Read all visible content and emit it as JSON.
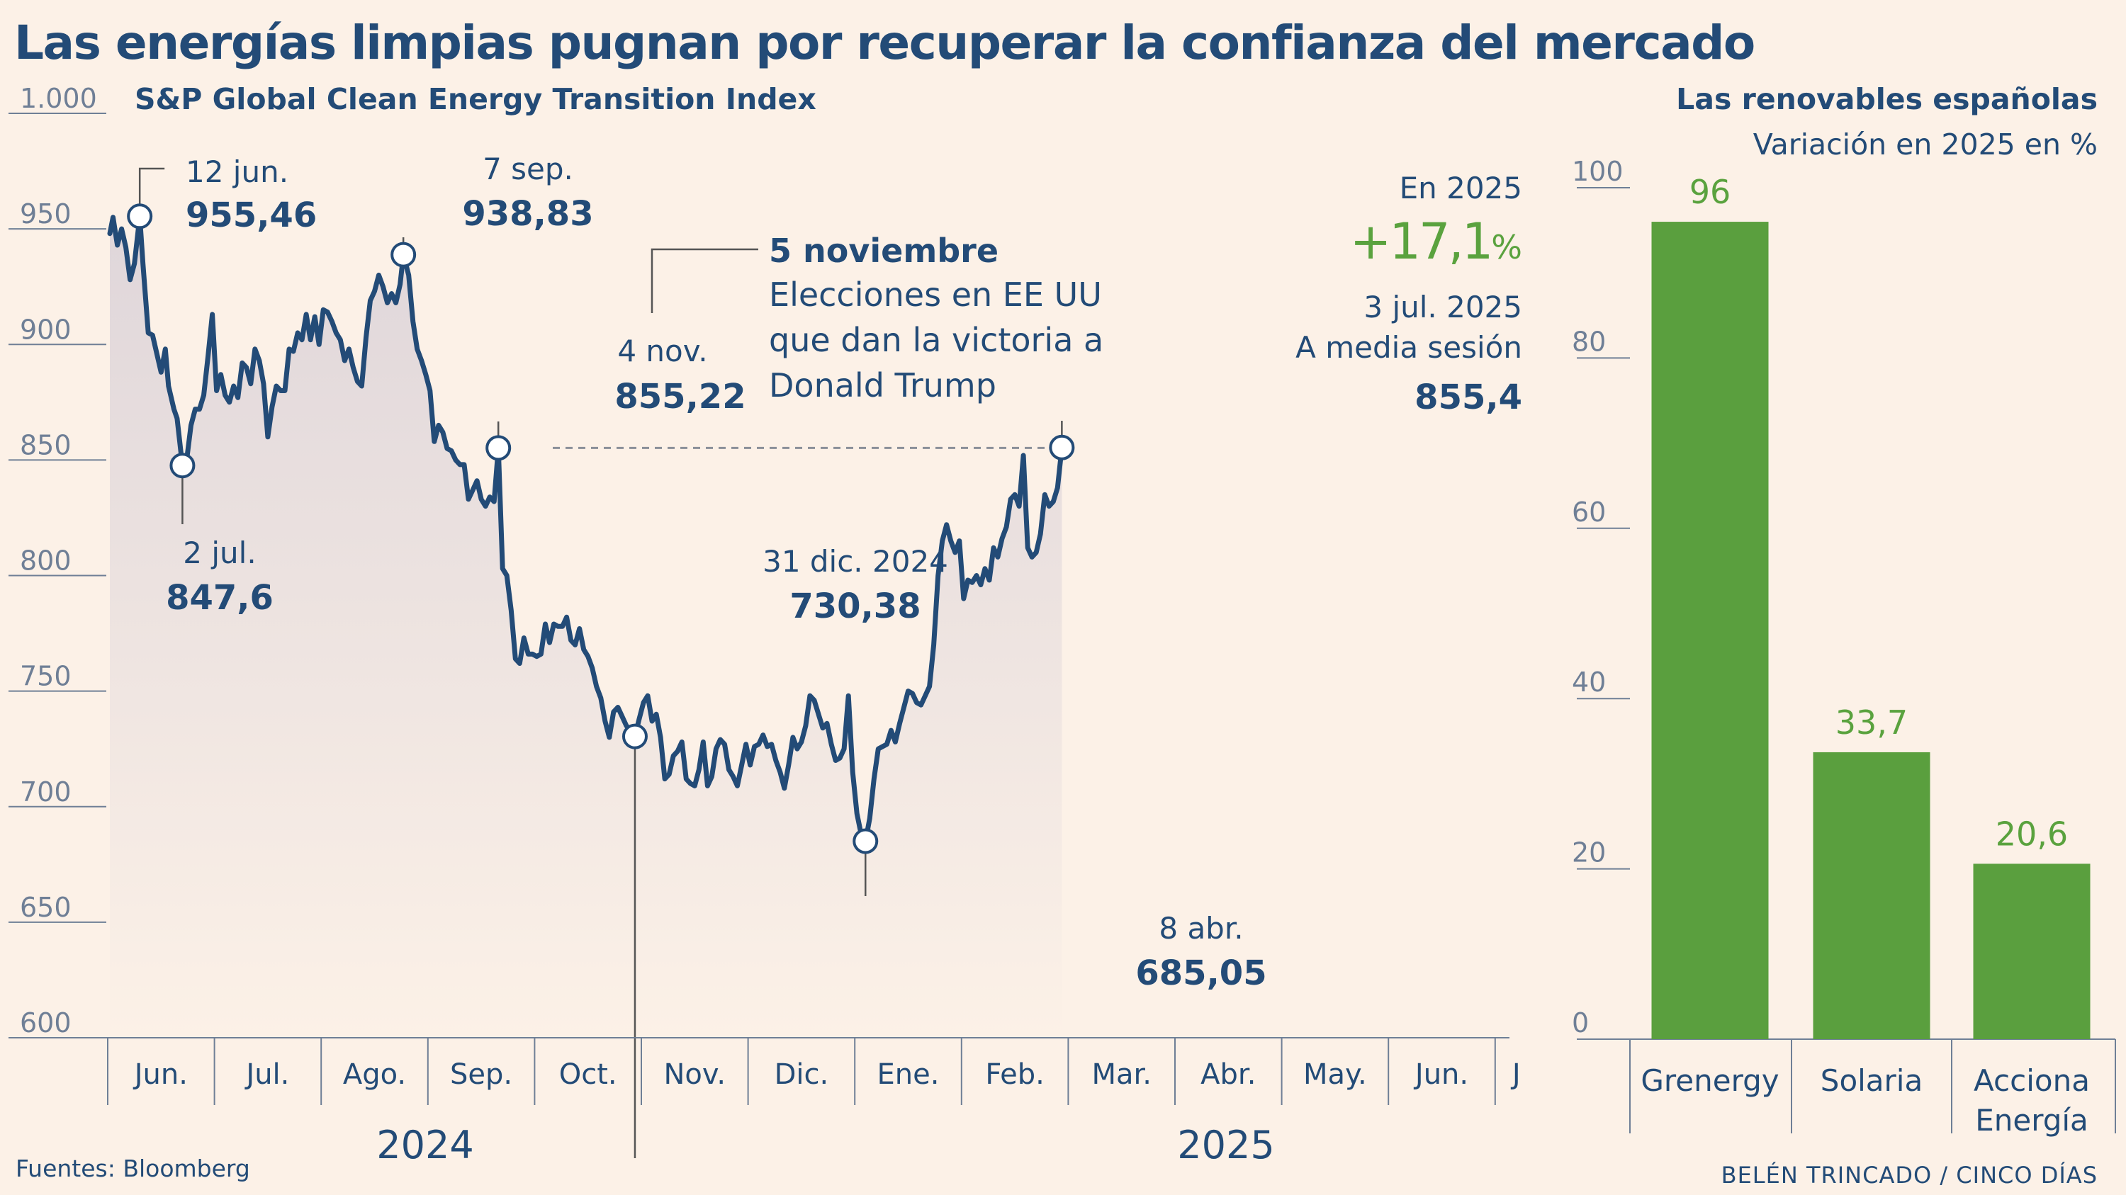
{
  "title": "Las energías limpias pugnan por recuperar la confianza del mercado",
  "source": "Fuentes: Bloomberg",
  "credit": "BELÉN TRINCADO / CINCO DÍAS",
  "colors": {
    "background": "#fcf1e7",
    "navy": "#234b77",
    "axis": "#6f7f96",
    "green_bar": "#5a9f3e",
    "green_text": "#5aa23e"
  },
  "chart_data": [
    {
      "type": "line",
      "title": "S&P Global Clean Energy Transition Index",
      "ylim": [
        600,
        1000
      ],
      "y_ticks": [
        "1.000",
        "950",
        "900",
        "850",
        "800",
        "750",
        "700",
        "650",
        "600"
      ],
      "month_labels": [
        "Jun.",
        "Jul.",
        "Ago.",
        "Sep.",
        "Oct.",
        "Nov.",
        "Dic.",
        "Ene.",
        "Feb.",
        "Mar.",
        "Abr.",
        "May.",
        "Jun.",
        "J"
      ],
      "year_labels": [
        "2024",
        "2025"
      ],
      "x_range_months": [
        5.0,
        18.2
      ],
      "reference_line_value": 855.22,
      "series": [
        {
          "name": "S&P Global Clean Energy Transition Index",
          "points": [
            [
              5.02,
              948
            ],
            [
              5.05,
              955
            ],
            [
              5.09,
              943
            ],
            [
              5.13,
              950
            ],
            [
              5.17,
              942
            ],
            [
              5.21,
              928
            ],
            [
              5.25,
              935
            ],
            [
              5.3,
              955.46
            ],
            [
              5.33,
              935
            ],
            [
              5.38,
              905
            ],
            [
              5.42,
              904
            ],
            [
              5.46,
              896
            ],
            [
              5.5,
              888
            ],
            [
              5.54,
              898
            ],
            [
              5.57,
              882
            ],
            [
              5.62,
              872
            ],
            [
              5.65,
              868
            ],
            [
              5.7,
              847.6
            ],
            [
              5.74,
              850
            ],
            [
              5.78,
              865
            ],
            [
              5.82,
              872
            ],
            [
              5.86,
              872
            ],
            [
              5.9,
              878
            ],
            [
              5.94,
              895
            ],
            [
              5.98,
              913
            ],
            [
              6.02,
              880
            ],
            [
              6.06,
              887
            ],
            [
              6.1,
              878
            ],
            [
              6.14,
              875
            ],
            [
              6.18,
              882
            ],
            [
              6.22,
              877
            ],
            [
              6.26,
              892
            ],
            [
              6.3,
              890
            ],
            [
              6.34,
              883
            ],
            [
              6.38,
              898
            ],
            [
              6.42,
              893
            ],
            [
              6.46,
              883
            ],
            [
              6.5,
              860
            ],
            [
              6.54,
              873
            ],
            [
              6.58,
              882
            ],
            [
              6.62,
              880
            ],
            [
              6.66,
              880
            ],
            [
              6.7,
              898
            ],
            [
              6.74,
              897
            ],
            [
              6.78,
              905
            ],
            [
              6.82,
              902
            ],
            [
              6.86,
              913
            ],
            [
              6.9,
              902
            ],
            [
              6.94,
              912
            ],
            [
              6.98,
              900
            ],
            [
              7.02,
              915
            ],
            [
              7.06,
              914
            ],
            [
              7.1,
              910
            ],
            [
              7.14,
              905
            ],
            [
              7.18,
              902
            ],
            [
              7.22,
              893
            ],
            [
              7.26,
              898
            ],
            [
              7.3,
              890
            ],
            [
              7.34,
              884
            ],
            [
              7.38,
              882
            ],
            [
              7.42,
              903
            ],
            [
              7.46,
              919
            ],
            [
              7.5,
              923
            ],
            [
              7.54,
              930
            ],
            [
              7.58,
              925
            ],
            [
              7.62,
              918
            ],
            [
              7.66,
              922
            ],
            [
              7.7,
              918
            ],
            [
              7.74,
              926
            ],
            [
              7.77,
              938.83
            ],
            [
              7.82,
              930
            ],
            [
              7.86,
              910
            ],
            [
              7.9,
              898
            ],
            [
              7.94,
              893
            ],
            [
              7.98,
              887
            ],
            [
              8.02,
              880
            ],
            [
              8.06,
              858
            ],
            [
              8.1,
              865
            ],
            [
              8.14,
              862
            ],
            [
              8.18,
              855
            ],
            [
              8.22,
              854
            ],
            [
              8.26,
              850
            ],
            [
              8.3,
              848
            ],
            [
              8.34,
              848
            ],
            [
              8.38,
              833
            ],
            [
              8.42,
              837
            ],
            [
              8.46,
              841
            ],
            [
              8.5,
              833
            ],
            [
              8.54,
              830
            ],
            [
              8.58,
              834
            ],
            [
              8.62,
              832
            ],
            [
              8.66,
              855.22
            ],
            [
              8.7,
              803
            ],
            [
              8.74,
              800
            ],
            [
              8.78,
              785
            ],
            [
              8.82,
              764
            ],
            [
              8.86,
              762
            ],
            [
              8.9,
              773
            ],
            [
              8.94,
              766
            ],
            [
              8.98,
              766
            ],
            [
              9.02,
              765
            ],
            [
              9.06,
              766
            ],
            [
              9.1,
              779
            ],
            [
              9.14,
              771
            ],
            [
              9.18,
              779
            ],
            [
              9.22,
              778
            ],
            [
              9.26,
              778
            ],
            [
              9.3,
              782
            ],
            [
              9.34,
              772
            ],
            [
              9.38,
              770
            ],
            [
              9.42,
              777
            ],
            [
              9.46,
              768
            ],
            [
              9.5,
              765
            ],
            [
              9.54,
              760
            ],
            [
              9.58,
              752
            ],
            [
              9.62,
              747
            ],
            [
              9.66,
              737
            ],
            [
              9.7,
              730
            ],
            [
              9.74,
              741
            ],
            [
              9.78,
              743
            ],
            [
              9.82,
              739
            ],
            [
              9.86,
              735
            ],
            [
              9.9,
              733
            ],
            [
              9.94,
              730.38
            ],
            [
              9.98,
              738
            ],
            [
              10.02,
              745
            ],
            [
              10.06,
              748
            ],
            [
              10.1,
              737
            ],
            [
              10.14,
              740
            ],
            [
              10.18,
              730
            ],
            [
              10.22,
              712
            ],
            [
              10.26,
              714
            ],
            [
              10.3,
              722
            ],
            [
              10.34,
              724
            ],
            [
              10.38,
              728
            ],
            [
              10.42,
              712
            ],
            [
              10.46,
              710
            ],
            [
              10.5,
              709
            ],
            [
              10.54,
              716
            ],
            [
              10.58,
              728
            ],
            [
              10.62,
              709
            ],
            [
              10.66,
              713
            ],
            [
              10.7,
              725
            ],
            [
              10.74,
              729
            ],
            [
              10.78,
              727
            ],
            [
              10.82,
              716
            ],
            [
              10.86,
              713
            ],
            [
              10.9,
              709
            ],
            [
              10.94,
              718
            ],
            [
              10.98,
              727
            ],
            [
              11.02,
              718
            ],
            [
              11.06,
              726
            ],
            [
              11.1,
              727
            ],
            [
              11.14,
              731
            ],
            [
              11.18,
              726
            ],
            [
              11.22,
              727
            ],
            [
              11.26,
              720
            ],
            [
              11.3,
              715
            ],
            [
              11.34,
              708
            ],
            [
              11.38,
              718
            ],
            [
              11.42,
              730
            ],
            [
              11.46,
              725
            ],
            [
              11.5,
              728
            ],
            [
              11.54,
              735
            ],
            [
              11.58,
              748
            ],
            [
              11.62,
              746
            ],
            [
              11.66,
              740
            ],
            [
              11.7,
              734
            ],
            [
              11.74,
              736
            ],
            [
              11.78,
              727
            ],
            [
              11.82,
              720
            ],
            [
              11.86,
              721
            ],
            [
              11.9,
              725
            ],
            [
              11.94,
              748
            ],
            [
              11.98,
              715
            ],
            [
              12.02,
              697
            ],
            [
              12.06,
              688
            ],
            [
              12.1,
              685.05
            ],
            [
              12.14,
              695
            ],
            [
              12.18,
              712
            ],
            [
              12.22,
              725
            ],
            [
              12.26,
              726
            ],
            [
              12.3,
              727
            ],
            [
              12.34,
              733
            ],
            [
              12.38,
              728
            ],
            [
              12.42,
              736
            ],
            [
              12.46,
              743
            ],
            [
              12.5,
              750
            ],
            [
              12.54,
              749
            ],
            [
              12.58,
              745
            ],
            [
              12.62,
              744
            ],
            [
              12.66,
              748
            ],
            [
              12.7,
              752
            ],
            [
              12.74,
              770
            ],
            [
              12.78,
              800
            ],
            [
              12.82,
              815
            ],
            [
              12.86,
              822
            ],
            [
              12.9,
              815
            ],
            [
              12.94,
              810
            ],
            [
              12.98,
              815
            ],
            [
              13.02,
              790
            ],
            [
              13.06,
              798
            ],
            [
              13.1,
              797
            ],
            [
              13.14,
              800
            ],
            [
              13.18,
              796
            ],
            [
              13.22,
              803
            ],
            [
              13.26,
              798
            ],
            [
              13.3,
              812
            ],
            [
              13.34,
              808
            ],
            [
              13.38,
              816
            ],
            [
              13.42,
              821
            ],
            [
              13.46,
              833
            ],
            [
              13.5,
              835
            ],
            [
              13.54,
              830
            ],
            [
              13.58,
              852
            ],
            [
              13.62,
              812
            ],
            [
              13.66,
              808
            ],
            [
              13.7,
              810
            ],
            [
              13.74,
              818
            ],
            [
              13.78,
              835
            ],
            [
              13.82,
              830
            ],
            [
              13.86,
              832
            ],
            [
              13.9,
              838
            ],
            [
              13.94,
              855.4
            ]
          ]
        }
      ],
      "annotations": [
        {
          "date": "12 jun.",
          "value": "955,46"
        },
        {
          "date": "2 jul.",
          "value": "847,6"
        },
        {
          "date": "7 sep.",
          "value": "938,83"
        },
        {
          "date": "4 nov.",
          "value": "855,22"
        },
        {
          "date": "31 dic. 2024",
          "value": "730,38"
        },
        {
          "date": "8 abr.",
          "value": "685,05"
        }
      ],
      "event": {
        "title": "5 noviembre",
        "lines": [
          "Elecciones en EE UU",
          "que dan la victoria a",
          "Donald Trump"
        ]
      },
      "ytd": {
        "label": "En 2025",
        "value": "+17,1",
        "suffix": "%",
        "date": "3 jul. 2025",
        "note": "A media sesión",
        "level": "855,4"
      }
    },
    {
      "type": "bar",
      "title": "Las renovables españolas",
      "subtitle": "Variación en 2025 en %",
      "ylim": [
        0,
        100
      ],
      "y_ticks": [
        "100",
        "80",
        "60",
        "40",
        "20",
        "0"
      ],
      "categories": [
        [
          "Grenergy"
        ],
        [
          "Solaria"
        ],
        [
          "Acciona",
          "Energía"
        ]
      ],
      "values": [
        96,
        33.7,
        20.6
      ],
      "value_labels": [
        "96",
        "33,7",
        "20,6"
      ]
    }
  ]
}
